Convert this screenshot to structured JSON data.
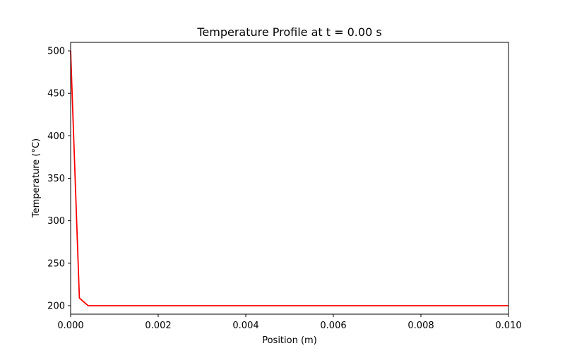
{
  "chart_data": {
    "type": "line",
    "title": "Temperature Profile at t = 0.00 s",
    "xlabel": "Position (m)",
    "ylabel": "Temperature (°C)",
    "xlim": [
      0,
      0.01
    ],
    "ylim": [
      190,
      510
    ],
    "xticks": [
      0,
      0.002,
      0.004,
      0.006,
      0.008,
      0.01
    ],
    "xtick_labels": [
      "0.000",
      "0.002",
      "0.004",
      "0.006",
      "0.008",
      "0.010"
    ],
    "yticks": [
      200,
      250,
      300,
      350,
      400,
      450,
      500
    ],
    "ytick_labels": [
      "200",
      "250",
      "300",
      "350",
      "400",
      "450",
      "500"
    ],
    "grid": false,
    "legend": null,
    "series": [
      {
        "color": "#ff0000",
        "x": [
          0,
          0.0002,
          0.0004,
          0.0006,
          0.001,
          0.002,
          0.003,
          0.004,
          0.005,
          0.006,
          0.007,
          0.008,
          0.009,
          0.01
        ],
        "y": [
          500,
          209,
          200,
          200,
          200,
          200,
          200,
          200,
          200,
          200,
          200,
          200,
          200,
          200
        ]
      }
    ]
  }
}
